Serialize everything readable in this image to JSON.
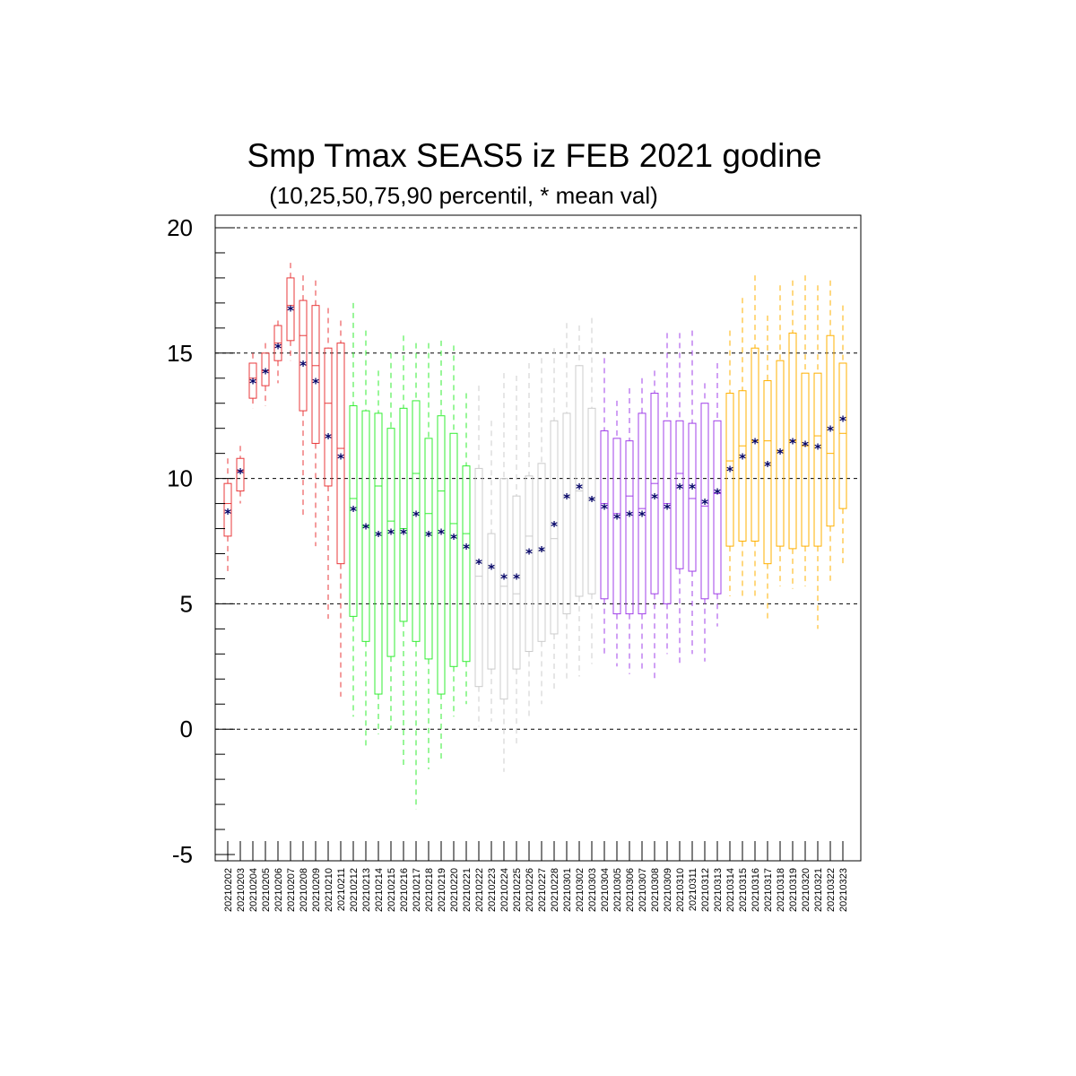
{
  "chart_data": {
    "type": "boxplot",
    "title": "Smp Tmax SEAS5 iz FEB 2021 godine",
    "subtitle": "(10,25,50,75,90 percentil, * mean val)",
    "ylim": [
      -5,
      20
    ],
    "yticks": [
      20,
      15,
      10,
      5,
      0,
      -5
    ],
    "grid": "dashed horizontal",
    "colors": {
      "red": "#e8393b",
      "green": "#33ee33",
      "gray": "#cccccc",
      "purple": "#a040e8",
      "orange": "#ffb000",
      "mean": "#000066"
    },
    "categories": [
      "20210202",
      "20210203",
      "20210204",
      "20210205",
      "20210206",
      "20210207",
      "20210208",
      "20210209",
      "20210210",
      "20210211",
      "20210212",
      "20210213",
      "20210214",
      "20210215",
      "20210216",
      "20210217",
      "20210218",
      "20210219",
      "20210220",
      "20210221",
      "20210222",
      "20210223",
      "20210224",
      "20210225",
      "20210226",
      "20210227",
      "20210228",
      "20210301",
      "20210302",
      "20210303",
      "20210304",
      "20210305",
      "20210306",
      "20210307",
      "20210308",
      "20210309",
      "20210310",
      "20210311",
      "20210312",
      "20210313",
      "20210314",
      "20210315",
      "20210316",
      "20210317",
      "20210318",
      "20210319",
      "20210320",
      "20210321",
      "20210322",
      "20210323"
    ],
    "series": [
      {
        "color": "red",
        "p10": [
          6.3,
          9.0,
          12.8,
          12.9,
          13.8,
          14.7,
          8.4,
          7.3,
          4.4,
          1.3
        ],
        "p25": [
          7.7,
          9.5,
          13.2,
          13.7,
          14.7,
          15.5,
          12.7,
          11.4,
          9.7,
          6.6
        ],
        "p50": [
          9.0,
          10.3,
          14.0,
          14.3,
          15.4,
          16.9,
          15.7,
          14.5,
          13.0,
          11.2
        ],
        "p75": [
          9.8,
          10.8,
          14.6,
          15.0,
          16.1,
          18.0,
          17.1,
          16.9,
          15.2,
          15.4
        ],
        "p90": [
          10.8,
          11.3,
          15.0,
          15.4,
          16.3,
          18.6,
          18.1,
          17.9,
          16.8,
          16.3
        ],
        "mean": [
          8.7,
          10.3,
          13.9,
          14.3,
          15.3,
          16.8,
          14.6,
          13.9,
          11.7,
          10.9
        ]
      },
      {
        "color": "green",
        "p10": [
          0.5,
          -0.7,
          -0.2,
          0.0,
          -1.6,
          -3.2,
          -1.6,
          -1.2,
          0.5,
          1.0
        ],
        "p25": [
          4.5,
          3.5,
          1.4,
          2.9,
          4.3,
          3.5,
          2.8,
          1.4,
          2.5,
          2.7
        ],
        "p50": [
          9.2,
          8.1,
          9.7,
          8.3,
          8.0,
          10.2,
          8.6,
          9.5,
          8.2,
          7.8
        ],
        "p75": [
          12.9,
          12.7,
          12.6,
          12.0,
          12.8,
          13.1,
          11.6,
          12.5,
          11.8,
          10.5
        ],
        "p90": [
          17.0,
          15.9,
          14.3,
          15.0,
          15.7,
          15.4,
          15.4,
          15.5,
          15.3,
          13.4
        ],
        "mean": [
          8.8,
          8.1,
          7.8,
          7.9,
          7.9,
          8.6,
          7.8,
          7.9,
          7.7,
          7.3
        ]
      },
      {
        "color": "gray",
        "p10": [
          0.1,
          0.3,
          -1.7,
          -0.7,
          0.5,
          1.0,
          1.5,
          1.9,
          2.1,
          2.6
        ],
        "p25": [
          1.7,
          2.4,
          1.2,
          2.4,
          3.1,
          3.5,
          3.8,
          4.6,
          5.3,
          5.4
        ],
        "p50": [
          6.1,
          6.5,
          5.7,
          5.4,
          7.7,
          7.1,
          7.6,
          9.3,
          9.5,
          9.2
        ],
        "p75": [
          10.4,
          7.8,
          10.0,
          9.3,
          10.1,
          10.6,
          12.3,
          12.6,
          14.5,
          12.8
        ],
        "p90": [
          13.7,
          12.3,
          14.2,
          14.1,
          14.6,
          14.8,
          15.2,
          16.2,
          16.1,
          16.4
        ],
        "mean": [
          6.7,
          6.5,
          6.1,
          6.1,
          7.1,
          7.2,
          8.2,
          9.3,
          9.7,
          9.2
        ]
      },
      {
        "color": "purple",
        "p10": [
          3.0,
          2.5,
          2.2,
          2.4,
          2.0,
          3.0,
          2.5,
          3.0,
          2.7,
          4.1
        ],
        "p25": [
          5.2,
          4.6,
          4.6,
          4.6,
          5.4,
          5.0,
          6.4,
          6.3,
          5.2,
          5.4
        ],
        "p50": [
          9.0,
          8.6,
          9.3,
          8.8,
          9.8,
          9.0,
          10.2,
          9.2,
          8.9,
          9.4
        ],
        "p75": [
          11.9,
          11.6,
          11.5,
          12.6,
          13.4,
          12.3,
          12.3,
          12.2,
          13.0,
          12.3
        ],
        "p90": [
          14.8,
          13.1,
          13.6,
          14.0,
          14.3,
          15.8,
          15.8,
          15.9,
          13.8,
          14.6
        ],
        "mean": [
          8.9,
          8.5,
          8.6,
          8.6,
          9.3,
          8.9,
          9.7,
          9.7,
          9.1,
          9.5
        ]
      },
      {
        "color": "orange",
        "p10": [
          5.3,
          5.2,
          5.2,
          4.3,
          5.7,
          5.6,
          5.7,
          4.0,
          5.9,
          6.5
        ],
        "p25": [
          7.3,
          7.5,
          7.5,
          6.6,
          7.3,
          7.2,
          7.3,
          7.3,
          8.1,
          8.8
        ],
        "p50": [
          10.7,
          11.3,
          11.5,
          11.5,
          11.1,
          11.5,
          11.3,
          11.7,
          11.0,
          11.8
        ],
        "p75": [
          13.4,
          13.5,
          15.2,
          13.9,
          14.7,
          15.8,
          14.2,
          14.2,
          15.7,
          14.6
        ],
        "p90": [
          15.9,
          17.2,
          18.1,
          16.5,
          17.7,
          17.9,
          18.1,
          17.7,
          17.9,
          16.9
        ],
        "mean": [
          10.4,
          10.9,
          11.5,
          10.6,
          11.1,
          11.5,
          11.4,
          11.3,
          12.0,
          12.4
        ]
      }
    ]
  }
}
